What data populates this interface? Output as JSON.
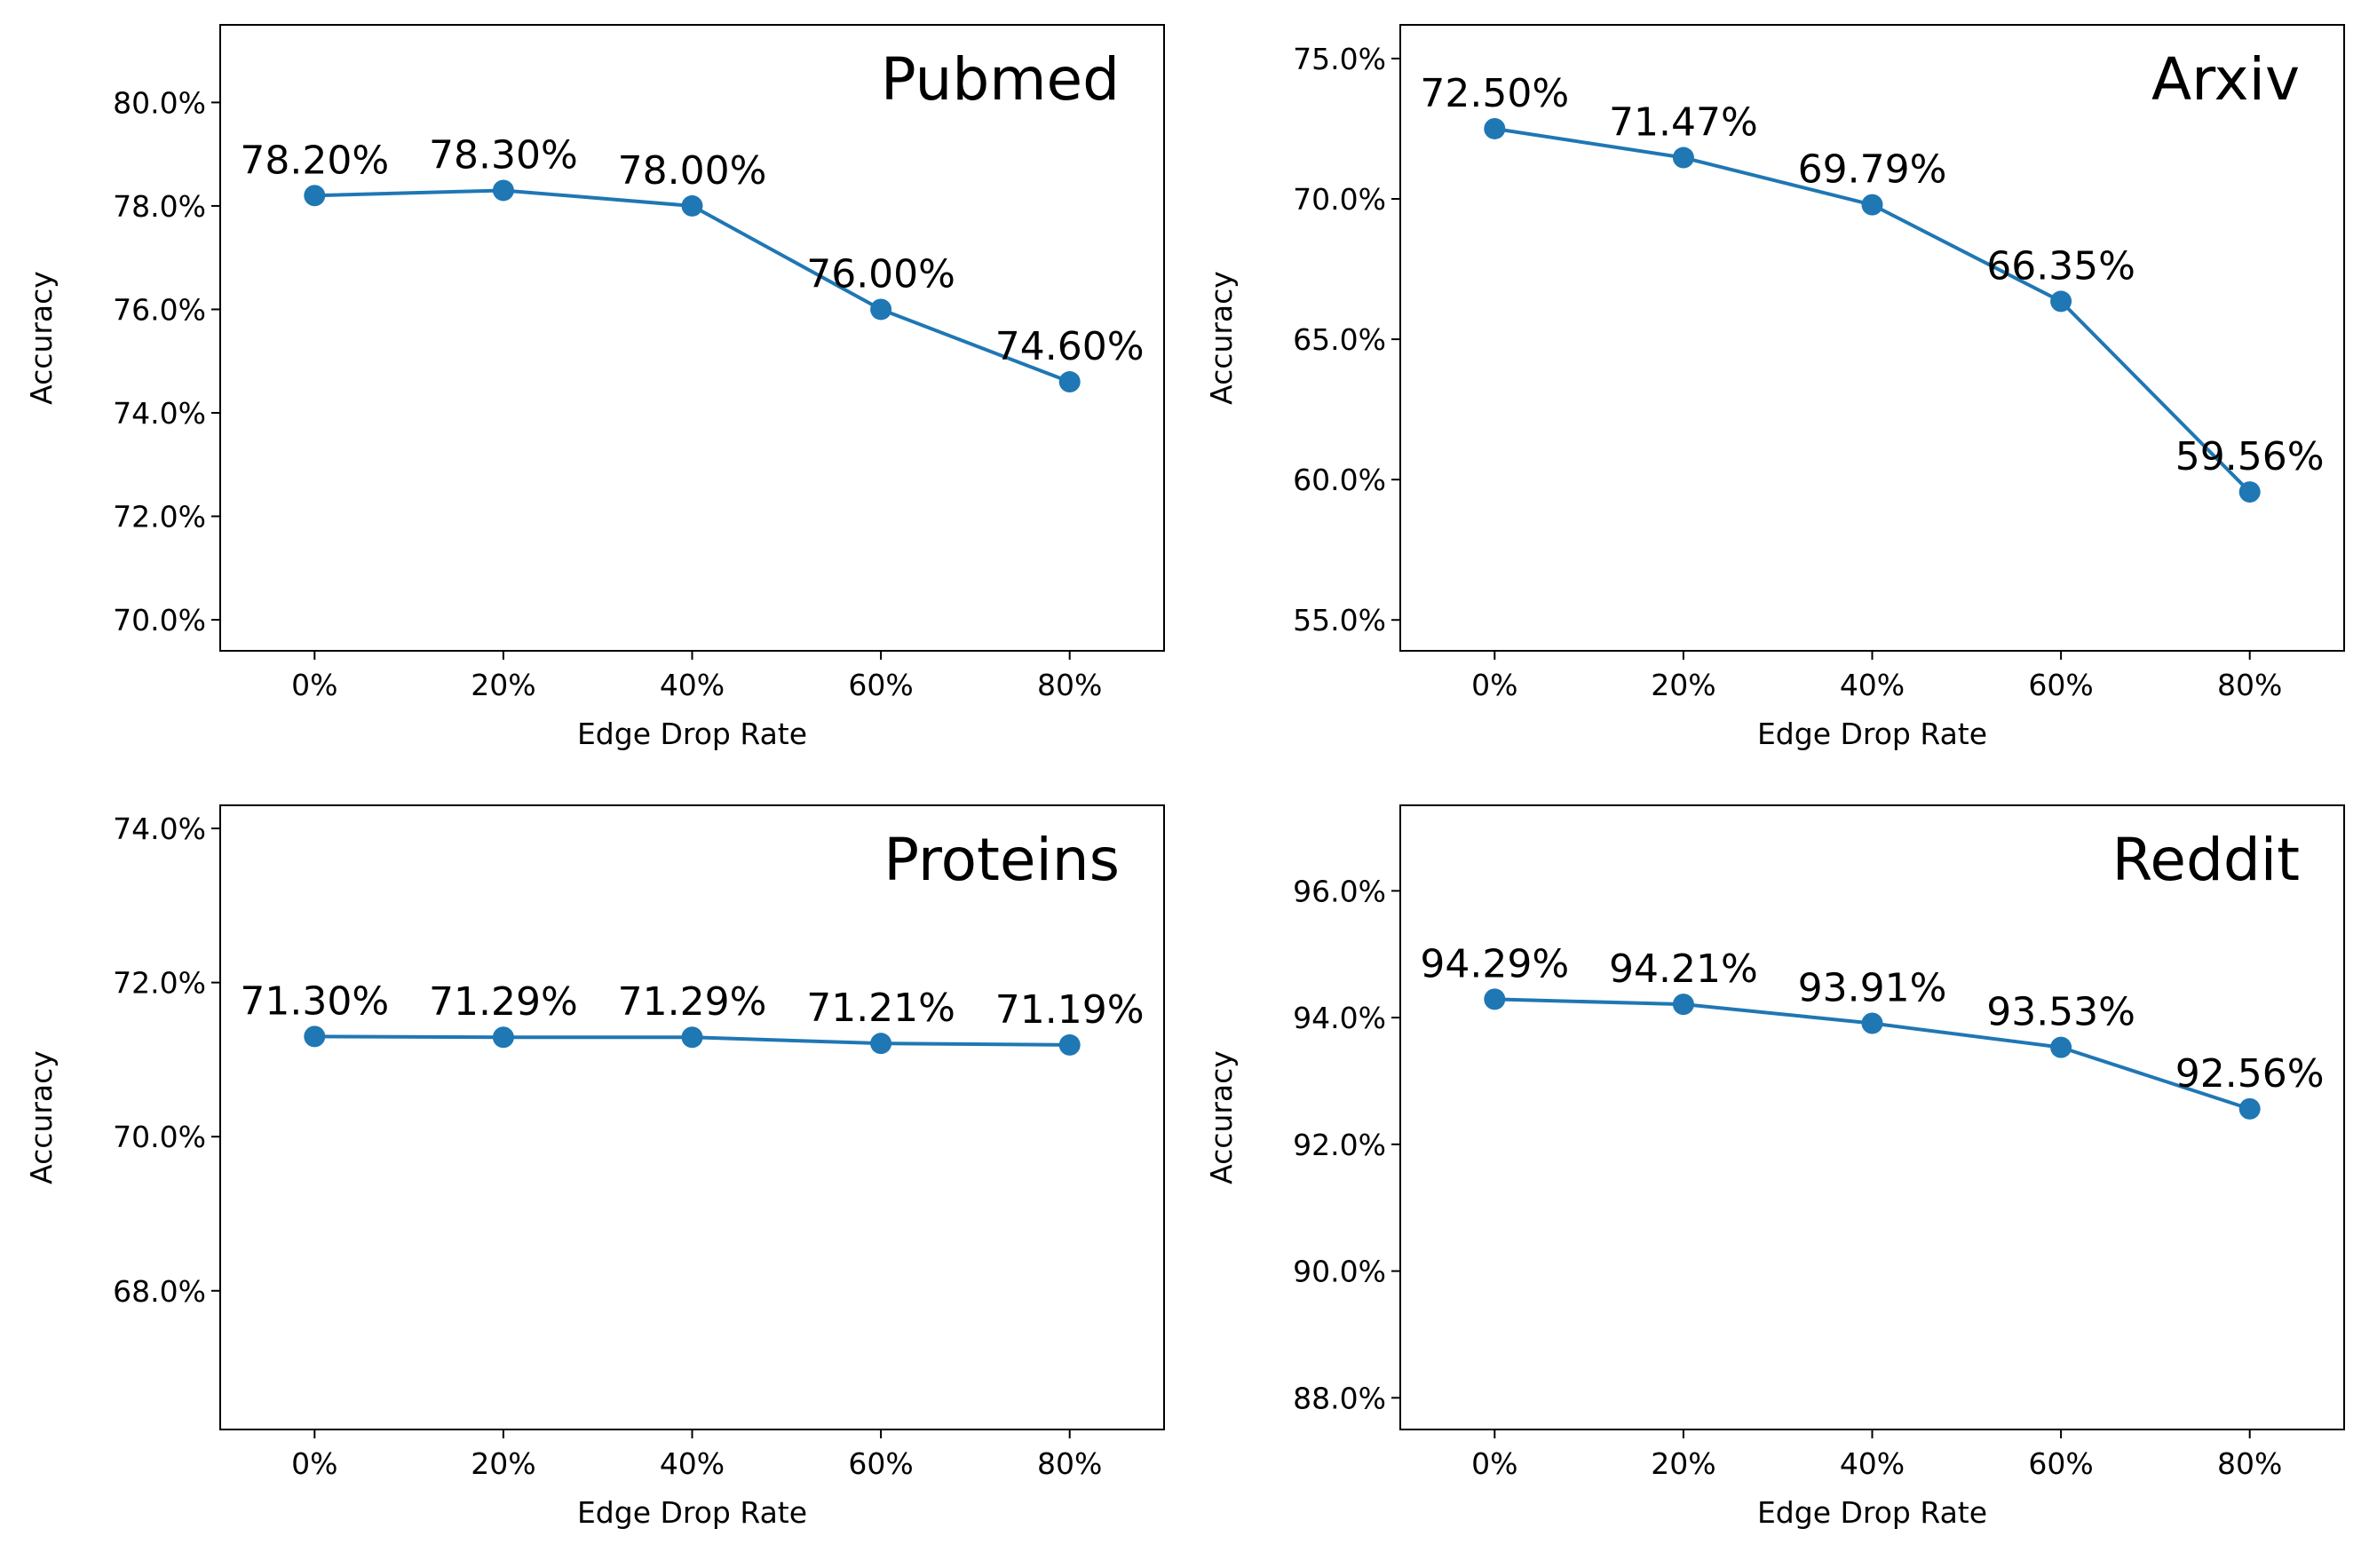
{
  "chart_data": [
    {
      "type": "line",
      "title": "Pubmed",
      "xlabel": "Edge Drop Rate",
      "ylabel": "Accuracy",
      "categories": [
        "0%",
        "20%",
        "40%",
        "60%",
        "80%"
      ],
      "values": [
        78.2,
        78.3,
        78.0,
        76.0,
        74.6
      ],
      "data_labels": [
        "78.20%",
        "78.30%",
        "78.00%",
        "76.00%",
        "74.60%"
      ],
      "yticks": [
        70,
        72,
        74,
        76,
        78,
        80
      ],
      "ytick_labels": [
        "70.0%",
        "72.0%",
        "74.0%",
        "76.0%",
        "78.0%",
        "80.0%"
      ],
      "ylim": [
        69.4,
        81.5
      ],
      "grid": false,
      "color": "#1f77b4"
    },
    {
      "type": "line",
      "title": "Arxiv",
      "xlabel": "Edge Drop Rate",
      "ylabel": "Accuracy",
      "categories": [
        "0%",
        "20%",
        "40%",
        "60%",
        "80%"
      ],
      "values": [
        72.5,
        71.47,
        69.79,
        66.35,
        59.56
      ],
      "data_labels": [
        "72.50%",
        "71.47%",
        "69.79%",
        "66.35%",
        "59.56%"
      ],
      "yticks": [
        55,
        60,
        65,
        70,
        75
      ],
      "ytick_labels": [
        "55.0%",
        "60.0%",
        "65.0%",
        "70.0%",
        "75.0%"
      ],
      "ylim": [
        53.9,
        76.2
      ],
      "grid": false,
      "color": "#1f77b4"
    },
    {
      "type": "line",
      "title": "Proteins",
      "xlabel": "Edge Drop Rate",
      "ylabel": "Accuracy",
      "categories": [
        "0%",
        "20%",
        "40%",
        "60%",
        "80%"
      ],
      "values": [
        71.3,
        71.29,
        71.29,
        71.21,
        71.19
      ],
      "data_labels": [
        "71.30%",
        "71.29%",
        "71.29%",
        "71.21%",
        "71.19%"
      ],
      "yticks": [
        68,
        70,
        72,
        74
      ],
      "ytick_labels": [
        "68.0%",
        "70.0%",
        "72.0%",
        "74.0%"
      ],
      "ylim": [
        66.2,
        74.3
      ],
      "grid": false,
      "color": "#1f77b4"
    },
    {
      "type": "line",
      "title": "Reddit",
      "xlabel": "Edge Drop Rate",
      "ylabel": "Accuracy",
      "categories": [
        "0%",
        "20%",
        "40%",
        "60%",
        "80%"
      ],
      "values": [
        94.29,
        94.21,
        93.91,
        93.53,
        92.56
      ],
      "data_labels": [
        "94.29%",
        "94.21%",
        "93.91%",
        "93.53%",
        "92.56%"
      ],
      "yticks": [
        88,
        90,
        92,
        94,
        96
      ],
      "ytick_labels": [
        "88.0%",
        "90.0%",
        "92.0%",
        "94.0%",
        "96.0%"
      ],
      "ylim": [
        87.5,
        97.35
      ],
      "grid": false,
      "color": "#1f77b4"
    }
  ]
}
